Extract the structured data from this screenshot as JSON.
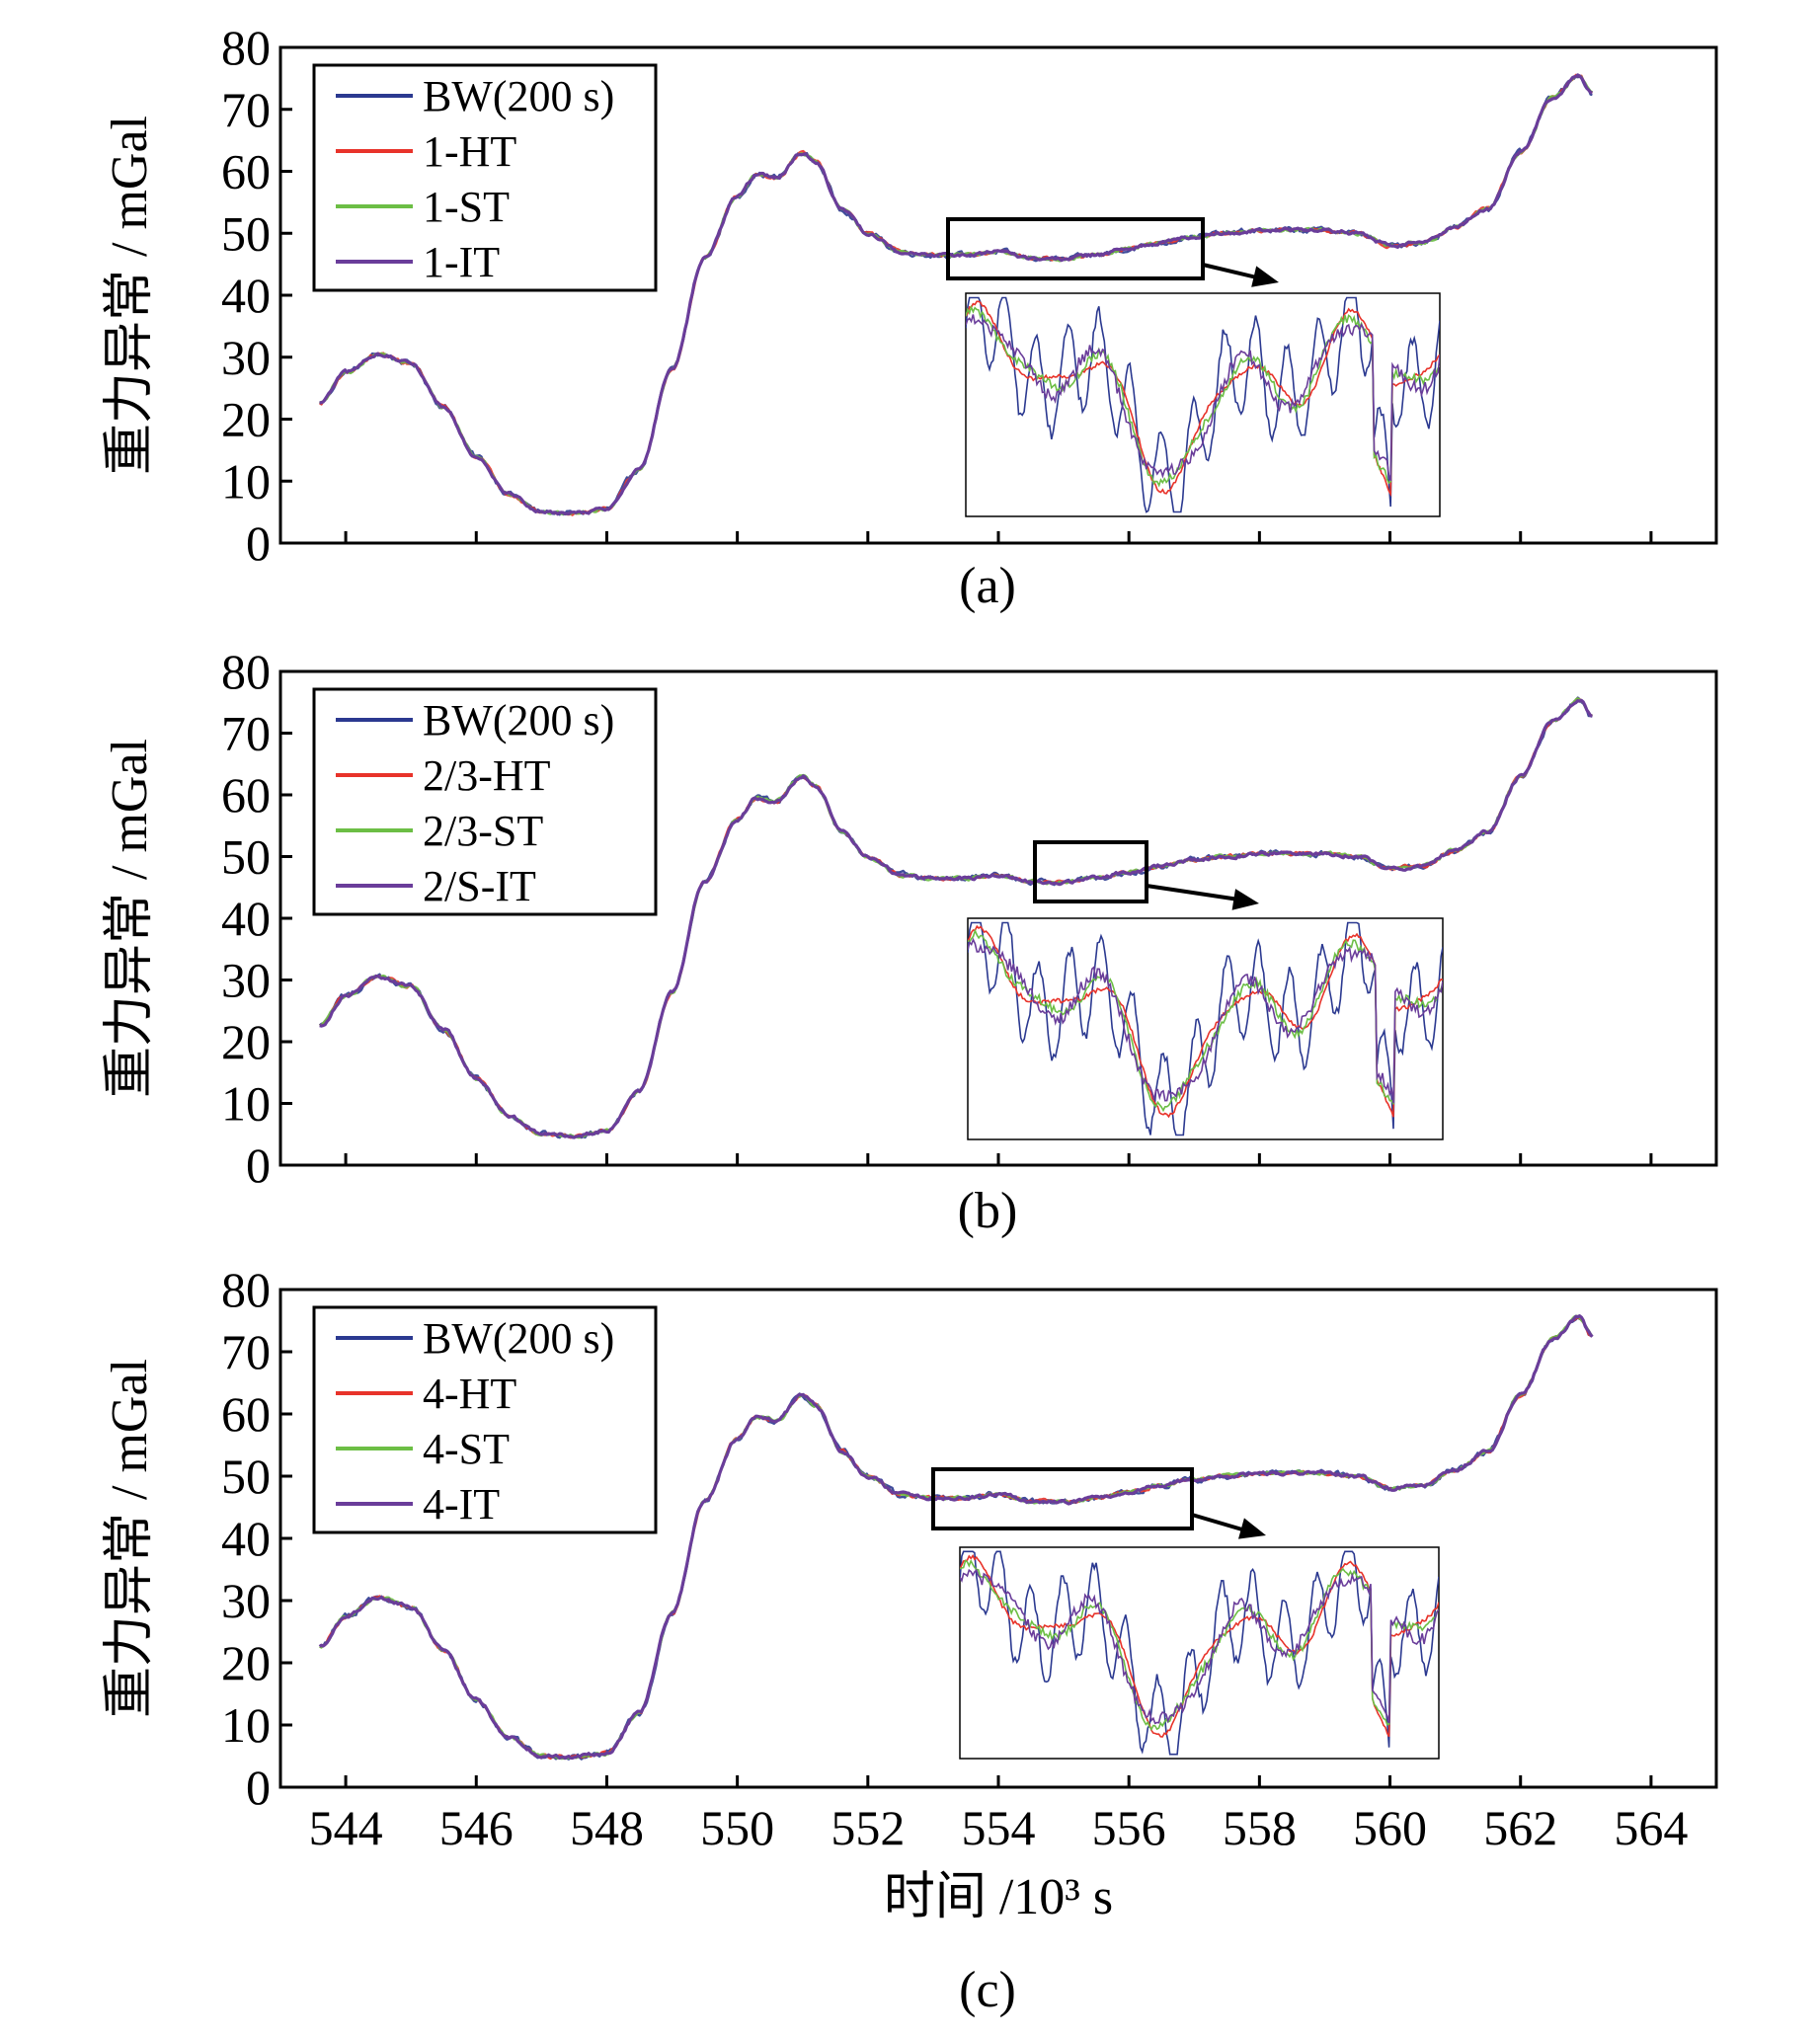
{
  "chart_data": [
    {
      "type": "line",
      "panel_label": "(a)",
      "ylabel": "重力异常 / mGal",
      "xlabel": "",
      "xlim": [
        543,
        565
      ],
      "ylim": [
        0,
        80
      ],
      "yticks": [
        0,
        10,
        20,
        30,
        40,
        50,
        60,
        70,
        80
      ],
      "xticks": [
        544,
        546,
        548,
        550,
        552,
        554,
        556,
        558,
        560,
        562,
        564
      ],
      "show_xtick_labels": false,
      "legend": [
        "BW(200 s)",
        "1-HT",
        "1-ST",
        "1-IT"
      ],
      "series": [
        {
          "name": "BW(200 s)",
          "color": "#2b3990"
        },
        {
          "name": "1-HT",
          "color": "#e8332a"
        },
        {
          "name": "1-ST",
          "color": "#6cbe45"
        },
        {
          "name": "1-IT",
          "color": "#6a3d9a"
        }
      ],
      "x": [
        543.6,
        544.0,
        544.5,
        545.0,
        545.5,
        546.0,
        546.5,
        547.0,
        547.5,
        548.0,
        548.5,
        549.0,
        549.5,
        550.0,
        550.3,
        550.6,
        551.0,
        551.2,
        551.6,
        552.0,
        552.5,
        553.0,
        553.5,
        554.0,
        554.5,
        555.0,
        555.5,
        556.0,
        556.5,
        557.0,
        557.5,
        558.0,
        558.5,
        559.0,
        559.5,
        560.0,
        560.5,
        561.0,
        561.5,
        562.0,
        562.5,
        562.9,
        563.1
      ],
      "y": [
        22.5,
        27.5,
        30.5,
        29.0,
        22.0,
        14.0,
        8.0,
        5.0,
        4.8,
        5.5,
        12.0,
        28.0,
        46.0,
        56.0,
        59.5,
        59.0,
        63.0,
        61.5,
        54.0,
        50.0,
        47.0,
        46.5,
        46.5,
        47.0,
        46.0,
        45.8,
        46.5,
        47.5,
        48.5,
        49.5,
        50.0,
        50.5,
        50.5,
        50.5,
        50.0,
        48.0,
        48.5,
        51.0,
        54.0,
        63.0,
        72.0,
        75.5,
        72.5
      ],
      "zoom_box": {
        "x_range": [
          552.7,
          556.5
        ],
        "y_range": [
          43.5,
          52.0
        ]
      }
    },
    {
      "type": "line",
      "panel_label": "(b)",
      "ylabel": "重力异常 / mGal",
      "xlabel": "",
      "xlim": [
        543,
        565
      ],
      "ylim": [
        0,
        80
      ],
      "yticks": [
        0,
        10,
        20,
        30,
        40,
        50,
        60,
        70,
        80
      ],
      "xticks": [
        544,
        546,
        548,
        550,
        552,
        554,
        556,
        558,
        560,
        562,
        564
      ],
      "show_xtick_labels": false,
      "legend": [
        "BW(200 s)",
        "2/3-HT",
        "2/3-ST",
        "2/S-IT"
      ],
      "series": [
        {
          "name": "BW(200 s)",
          "color": "#2b3990"
        },
        {
          "name": "2/3-HT",
          "color": "#e8332a"
        },
        {
          "name": "2/3-ST",
          "color": "#6cbe45"
        },
        {
          "name": "2/S-IT",
          "color": "#6a3d9a"
        }
      ],
      "x": [
        543.6,
        544.0,
        544.5,
        545.0,
        545.5,
        546.0,
        546.5,
        547.0,
        547.5,
        548.0,
        548.5,
        549.0,
        549.5,
        550.0,
        550.3,
        550.6,
        551.0,
        551.2,
        551.6,
        552.0,
        552.5,
        553.0,
        553.5,
        554.0,
        554.5,
        555.0,
        555.5,
        556.0,
        556.5,
        557.0,
        557.5,
        558.0,
        558.5,
        559.0,
        559.5,
        560.0,
        560.5,
        561.0,
        561.5,
        562.0,
        562.5,
        562.9,
        563.1
      ],
      "y": [
        22.5,
        27.5,
        30.5,
        29.0,
        22.0,
        14.0,
        8.0,
        5.0,
        4.8,
        5.5,
        12.0,
        28.0,
        46.0,
        56.0,
        59.5,
        59.0,
        63.0,
        61.5,
        54.0,
        50.0,
        47.0,
        46.5,
        46.5,
        47.0,
        46.0,
        45.8,
        46.5,
        47.5,
        48.5,
        49.5,
        50.0,
        50.5,
        50.5,
        50.5,
        50.0,
        48.0,
        48.5,
        51.0,
        54.0,
        63.0,
        72.0,
        75.5,
        72.5
      ],
      "zoom_box": {
        "x_range": [
          554.0,
          556.2
        ],
        "y_range": [
          43.0,
          52.0
        ]
      }
    },
    {
      "type": "line",
      "panel_label": "(c)",
      "ylabel": "重力异常 / mGal",
      "xlabel": "时间 /10³ s",
      "xlim": [
        543,
        565
      ],
      "ylim": [
        0,
        80
      ],
      "yticks": [
        0,
        10,
        20,
        30,
        40,
        50,
        60,
        70,
        80
      ],
      "xticks": [
        544,
        546,
        548,
        550,
        552,
        554,
        556,
        558,
        560,
        562,
        564
      ],
      "show_xtick_labels": true,
      "legend": [
        "BW(200 s)",
        "4-HT",
        "4-ST",
        "4-IT"
      ],
      "series": [
        {
          "name": "BW(200 s)",
          "color": "#2b3990"
        },
        {
          "name": "4-HT",
          "color": "#e8332a"
        },
        {
          "name": "4-ST",
          "color": "#6cbe45"
        },
        {
          "name": "4-IT",
          "color": "#6a3d9a"
        }
      ],
      "x": [
        543.6,
        544.0,
        544.5,
        545.0,
        545.5,
        546.0,
        546.5,
        547.0,
        547.5,
        548.0,
        548.5,
        549.0,
        549.5,
        550.0,
        550.3,
        550.6,
        551.0,
        551.2,
        551.6,
        552.0,
        552.5,
        553.0,
        553.5,
        554.0,
        554.5,
        555.0,
        555.5,
        556.0,
        556.5,
        557.0,
        557.5,
        558.0,
        558.5,
        559.0,
        559.5,
        560.0,
        560.5,
        561.0,
        561.5,
        562.0,
        562.5,
        562.9,
        563.1
      ],
      "y": [
        22.5,
        27.5,
        30.5,
        29.0,
        22.0,
        14.0,
        8.0,
        5.0,
        4.8,
        5.5,
        12.0,
        28.0,
        46.0,
        56.0,
        59.5,
        59.0,
        63.0,
        61.5,
        54.0,
        50.0,
        47.0,
        46.5,
        46.5,
        47.0,
        46.0,
        45.8,
        46.5,
        47.5,
        48.5,
        49.5,
        50.0,
        50.5,
        50.5,
        50.5,
        50.0,
        48.0,
        48.5,
        51.0,
        54.0,
        63.0,
        72.0,
        75.5,
        72.5
      ],
      "zoom_box": {
        "x_range": [
          552.6,
          556.4
        ],
        "y_range": [
          41.5,
          51.5
        ]
      }
    }
  ],
  "xtick_labels": [
    "544",
    "546",
    "548",
    "550",
    "552",
    "554",
    "556",
    "558",
    "560",
    "562",
    "564"
  ],
  "ytick_labels": [
    "0",
    "10",
    "20",
    "30",
    "40",
    "50",
    "60",
    "70",
    "80"
  ],
  "colors": {
    "axis": "#000000",
    "background": "#ffffff"
  }
}
